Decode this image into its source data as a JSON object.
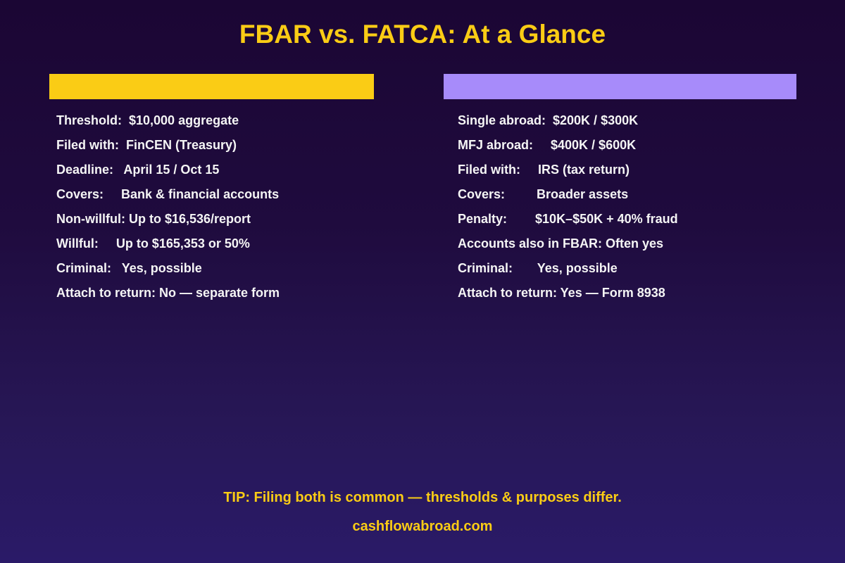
{
  "title": "FBAR vs. FATCA: At a Glance",
  "colors": {
    "accent_left": "#facc15",
    "accent_right": "#a78bfa",
    "background_top": "#1b0634",
    "background_bottom": "#2a1a68"
  },
  "left": {
    "rows": [
      "Threshold:  $10,000 aggregate",
      "Filed with:  FinCEN (Treasury)",
      "Deadline:   April 15 / Oct 15",
      "Covers:     Bank & financial accounts",
      "Non-willful: Up to $16,536/report",
      "Willful:     Up to $165,353 or 50%",
      "Criminal:   Yes, possible",
      "Attach to return: No — separate form"
    ]
  },
  "right": {
    "rows": [
      "Single abroad:  $200K / $300K",
      "MFJ abroad:     $400K / $600K",
      "Filed with:     IRS (tax return)",
      "Covers:         Broader assets",
      "Penalty:        $10K–$50K + 40% fraud",
      "Accounts also in FBAR: Often yes",
      "Criminal:       Yes, possible",
      "Attach to return: Yes — Form 8938"
    ]
  },
  "footer": {
    "tip": "TIP: Filing both is common — thresholds & purposes differ.",
    "site": "cashflowabroad.com"
  }
}
